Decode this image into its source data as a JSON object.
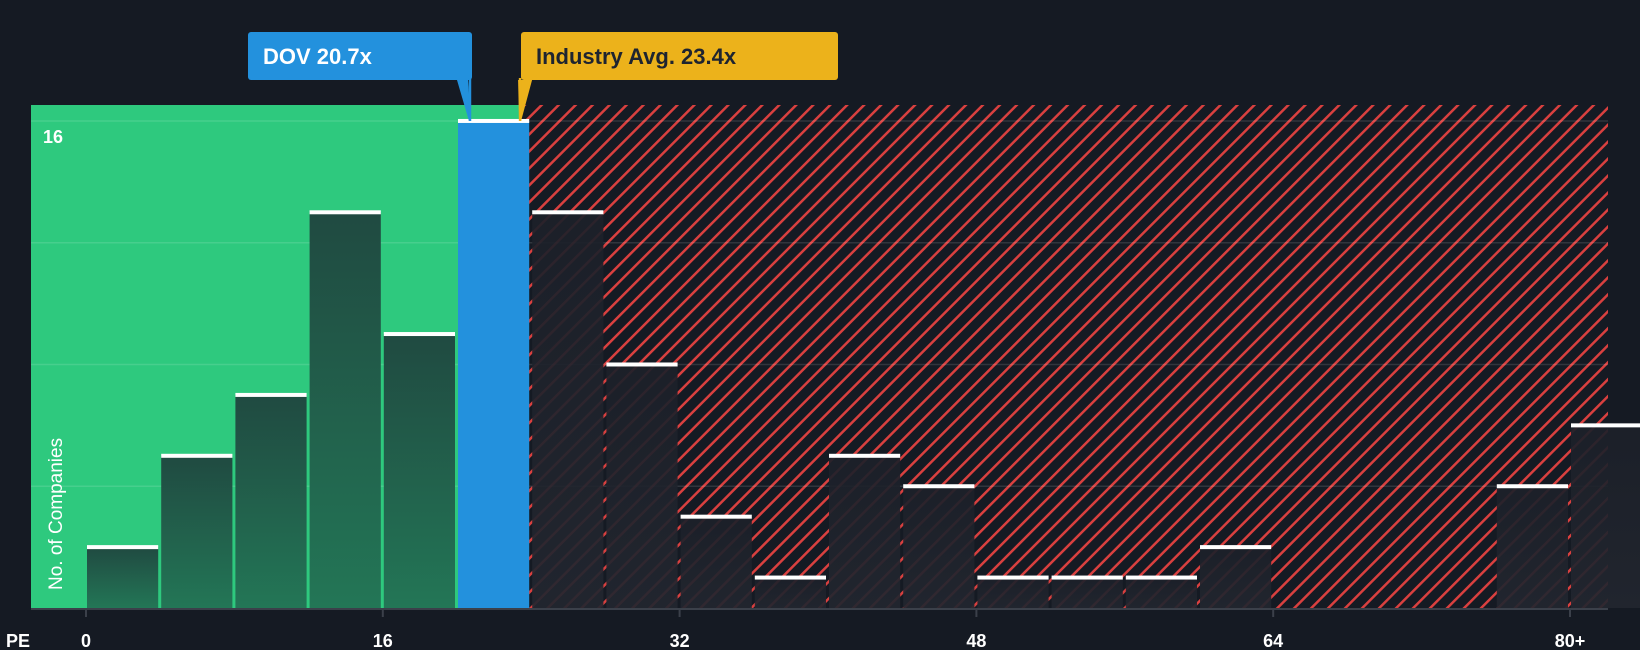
{
  "chart_data": {
    "type": "bar",
    "title": "",
    "xlabel": "PE",
    "ylabel": "No. of Companies",
    "bin_width": 4,
    "bins": [
      0,
      4,
      8,
      12,
      16,
      20,
      24,
      28,
      32,
      36,
      40,
      44,
      48,
      52,
      56,
      60,
      64,
      68,
      72,
      76,
      80
    ],
    "values": [
      2,
      5,
      7,
      13,
      9,
      16,
      13,
      8,
      3,
      1,
      5,
      4,
      1,
      1,
      1,
      2,
      0,
      0,
      0,
      4,
      6
    ],
    "highlight_bin": 20,
    "x_ticks": [
      {
        "v": 0,
        "label": "0"
      },
      {
        "v": 16,
        "label": "16"
      },
      {
        "v": 32,
        "label": "32"
      },
      {
        "v": 48,
        "label": "48"
      },
      {
        "v": 64,
        "label": "64"
      },
      {
        "v": 80,
        "label": "80+"
      }
    ],
    "y_tick_label": "16",
    "y_gridlines": [
      4,
      8,
      12,
      16
    ],
    "ylim": [
      0,
      16.5
    ],
    "company": {
      "label": "DOV 20.7x",
      "value": 20.7
    },
    "industry": {
      "label": "Industry Avg. 23.4x",
      "value": 23.4
    },
    "colors": {
      "background": "#151a23",
      "fair": "#2ec97e",
      "company": "#2391dd",
      "industry": "#ecb21b",
      "hatch": "#d9403f",
      "bar_dark": "#1e2430"
    }
  }
}
